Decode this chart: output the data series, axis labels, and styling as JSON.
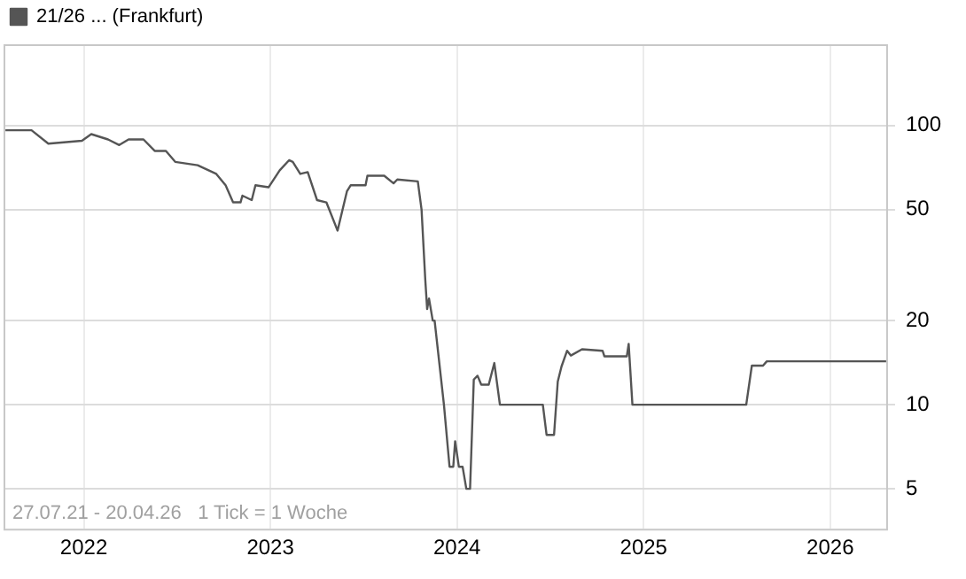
{
  "chart_data": {
    "type": "line",
    "log": true,
    "grid": true,
    "legend": "top left",
    "marker": "none",
    "line_style": "solid",
    "annotations": [
      "27.07.21 - 20.04.26   1 Tick = 1 Woche"
    ],
    "xlim": [
      2021.57,
      2026.3
    ],
    "xticks": [
      2022,
      2023,
      2024,
      2025,
      2026
    ],
    "ylim": [
      3.6,
      195
    ],
    "yticks": [
      5,
      10,
      20,
      50,
      100
    ],
    "series": [
      {
        "name": "21/26 ... (Frankfurt)",
        "color": "#555555",
        "x": [
          2021.58,
          2021.72,
          2021.81,
          2021.99,
          2022.04,
          2022.13,
          2022.19,
          2022.24,
          2022.32,
          2022.38,
          2022.44,
          2022.49,
          2022.61,
          2022.71,
          2022.76,
          2022.8,
          2022.84,
          2022.85,
          2022.9,
          2022.92,
          2022.99,
          2023.05,
          2023.1,
          2023.12,
          2023.16,
          2023.2,
          2023.25,
          2023.3,
          2023.36,
          2023.41,
          2023.43,
          2023.51,
          2023.52,
          2023.61,
          2023.66,
          2023.68,
          2023.79,
          2023.81,
          2023.83,
          2023.84,
          2023.85,
          2023.87,
          2023.88,
          2023.93,
          2023.96,
          2023.98,
          2023.99,
          2024.01,
          2024.03,
          2024.05,
          2024.07,
          2024.09,
          2024.11,
          2024.13,
          2024.17,
          2024.2,
          2024.23,
          2024.46,
          2024.48,
          2024.52,
          2024.54,
          2024.56,
          2024.59,
          2024.61,
          2024.67,
          2024.78,
          2024.79,
          2024.91,
          2024.92,
          2024.94,
          2025.55,
          2025.58,
          2025.64,
          2025.66,
          2026.3
        ],
        "values": [
          96,
          96,
          86,
          88,
          93,
          89,
          85,
          89,
          89,
          81,
          81,
          74,
          72,
          67,
          61,
          53,
          53,
          56,
          54,
          61,
          60,
          69,
          75,
          74,
          67,
          68,
          54,
          53,
          42,
          58,
          61,
          61,
          66,
          66,
          62,
          64,
          63,
          50,
          28,
          22,
          24,
          20,
          20,
          10,
          6,
          6,
          7.4,
          6,
          6,
          5,
          5,
          12.3,
          12.7,
          11.8,
          11.8,
          14.1,
          10,
          10,
          7.8,
          7.8,
          12.1,
          13.7,
          15.6,
          15,
          15.8,
          15.6,
          14.9,
          14.9,
          16.5,
          10,
          10,
          13.8,
          13.8,
          14.3,
          14.3
        ]
      }
    ]
  }
}
